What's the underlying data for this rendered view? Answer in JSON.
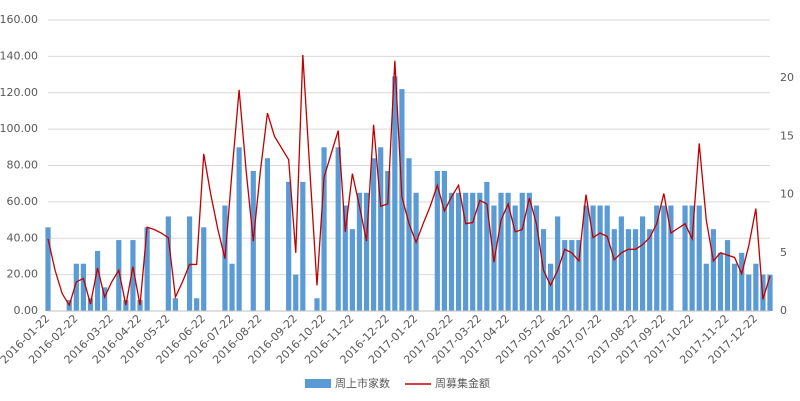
{
  "chart_data": {
    "type": "bar_line",
    "categories": [
      "2016-01-22",
      null,
      null,
      null,
      "2016-02-22",
      null,
      null,
      null,
      null,
      "2016-03-22",
      null,
      null,
      null,
      "2016-04-22",
      null,
      null,
      null,
      "2016-05-22",
      null,
      null,
      null,
      null,
      "2016-06-22",
      null,
      null,
      null,
      "2016-07-22",
      null,
      null,
      null,
      "2016-08-22",
      null,
      null,
      null,
      null,
      "2016-09-22",
      null,
      null,
      null,
      "2016-10-22",
      null,
      null,
      null,
      "2016-11-22",
      null,
      null,
      null,
      null,
      "2016-12-22",
      null,
      null,
      null,
      "2017-01-22",
      null,
      null,
      null,
      null,
      "2017-02-22",
      null,
      null,
      null,
      "2017-03-22",
      null,
      null,
      null,
      "2017-04-22",
      null,
      null,
      null,
      null,
      "2017-05-22",
      null,
      null,
      null,
      "2017-06-22",
      null,
      null,
      null,
      "2017-07-22",
      null,
      null,
      null,
      null,
      "2017-08-22",
      null,
      null,
      null,
      "2017-09-22",
      null,
      null,
      null,
      "2017-10-22",
      null,
      null,
      null,
      null,
      "2017-11-22",
      null,
      null,
      null,
      "2017-12-22",
      null,
      null
    ],
    "series": [
      {
        "name": "周上市家数",
        "type": "bar",
        "color": "#5b9bd5",
        "values": [
          46,
          0,
          0,
          6,
          26,
          26,
          7,
          33,
          13,
          0,
          39,
          6,
          39,
          6,
          46,
          0,
          0,
          52,
          7,
          0,
          52,
          7,
          46,
          0,
          0,
          58,
          26,
          90,
          0,
          77,
          0,
          84,
          0,
          0,
          71,
          20,
          71,
          0,
          7,
          90,
          0,
          90,
          58,
          45,
          65,
          65,
          84,
          90,
          77,
          129,
          122,
          84,
          65,
          0,
          0,
          77,
          77,
          65,
          65,
          65,
          65,
          65,
          71,
          58,
          65,
          65,
          58,
          65,
          65,
          58,
          45,
          26,
          52,
          39,
          39,
          39,
          58,
          58,
          58,
          58,
          45,
          52,
          45,
          45,
          52,
          45,
          58,
          58,
          58,
          0,
          58,
          58,
          58,
          26,
          45,
          32,
          39,
          26,
          32,
          20,
          26,
          20,
          20
        ]
      },
      {
        "name": "周募集金额",
        "type": "line",
        "axis": "y2",
        "color": "#c00000",
        "values": [
          6.2,
          3.5,
          1.5,
          0.5,
          2.5,
          2.8,
          0.6,
          3.7,
          1.2,
          2.5,
          3.5,
          0.5,
          3.8,
          0.5,
          7.2,
          7,
          6.7,
          6.3,
          1.2,
          2.5,
          4,
          4,
          13.5,
          10,
          7,
          4.5,
          12,
          19,
          12,
          6,
          12,
          17,
          15,
          14,
          13,
          5,
          22,
          12,
          2.2,
          11.5,
          13.5,
          15.5,
          6.8,
          11.8,
          9,
          6,
          16,
          9,
          9.2,
          21.5,
          9.8,
          7.5,
          5.9,
          7.5,
          9,
          10.8,
          8.6,
          9.8,
          10.8,
          7.5,
          7.6,
          9.5,
          9.2,
          4.2,
          7.8,
          9.2,
          6.8,
          7,
          9.7,
          7.5,
          3.5,
          2.2,
          3.5,
          5.3,
          5,
          4.3,
          10,
          6.3,
          6.7,
          6.4,
          4.4,
          5,
          5.3,
          5.3,
          5.7,
          6.3,
          7.5,
          10.1,
          6.7,
          7.1,
          7.5,
          6.2,
          14.4,
          7.8,
          4.3,
          5,
          4.8,
          4.6,
          3.2,
          5.6,
          8.8,
          1,
          3
        ]
      }
    ],
    "ylim": [
      0,
      160
    ],
    "yticks": [
      {
        "value": 0,
        "label": "0.00"
      },
      {
        "value": 20,
        "label": "20.00"
      },
      {
        "value": 40,
        "label": "40.00"
      },
      {
        "value": 60,
        "label": "60.00"
      },
      {
        "value": 80,
        "label": "80.00"
      },
      {
        "value": 100,
        "label": "100.00"
      },
      {
        "value": 120,
        "label": "120.00"
      },
      {
        "value": 140,
        "label": "140.00"
      },
      {
        "value": 160,
        "label": "160.00"
      }
    ],
    "y2lim": [
      0,
      25
    ],
    "y2ticks": [
      0,
      5,
      10,
      15,
      20
    ],
    "grid": true,
    "legend": "bottom"
  }
}
